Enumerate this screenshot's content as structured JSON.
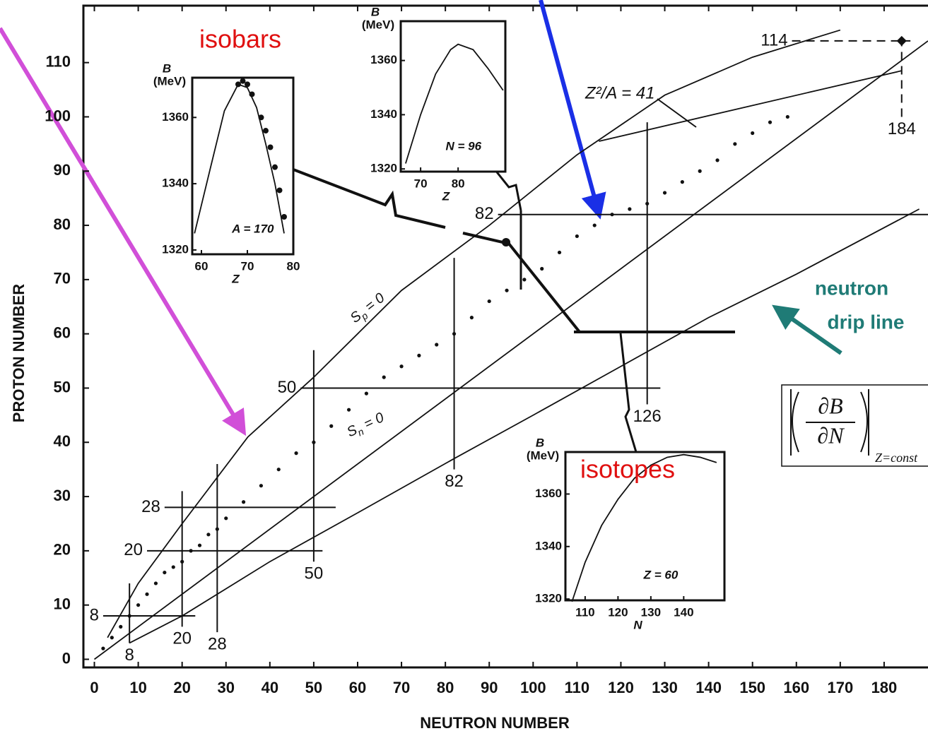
{
  "chart_data": [
    {
      "type": "line",
      "x_label": "NEUTRON NUMBER",
      "y_label": "PROTON NUMBER",
      "xlim": [
        -2.5,
        190
      ],
      "ylim": [
        -1.5,
        120.5
      ],
      "xticks": [
        0,
        10,
        20,
        30,
        40,
        50,
        60,
        70,
        80,
        90,
        100,
        110,
        120,
        130,
        140,
        150,
        160,
        170,
        180
      ],
      "yticks": [
        0,
        10,
        20,
        30,
        40,
        50,
        60,
        70,
        80,
        90,
        100,
        110
      ],
      "series": [
        {
          "x": [
            3,
            10,
            20,
            35,
            50,
            70,
            90,
            110,
            130,
            150,
            170
          ],
          "values": [
            4,
            14,
            25,
            41,
            52,
            68,
            80,
            93,
            104,
            111,
            116
          ],
          "label": "S",
          "sub": "p",
          "rest": " = 0"
        },
        {
          "x": [
            8,
            20,
            40,
            60,
            82,
            100,
            120,
            140,
            160,
            188
          ],
          "values": [
            3,
            8,
            18,
            27,
            37,
            45,
            54,
            63,
            71,
            83
          ],
          "label": "S",
          "sub": "n",
          "rest": " = 0"
        },
        {
          "x": [
            0,
            190
          ],
          "values": [
            0,
            114
          ]
        },
        {
          "x": [
            115,
            184
          ],
          "values": [
            95.5,
            108.5
          ],
          "label": "Z²/A = 41"
        }
      ],
      "scatter": {
        "x": [
          2,
          4,
          6,
          8,
          10,
          12,
          14,
          16,
          18,
          20,
          22,
          24,
          26,
          28,
          30,
          34,
          38,
          42,
          46,
          50,
          54,
          58,
          62,
          66,
          70,
          74,
          78,
          82,
          86,
          90,
          94,
          98,
          102,
          106,
          110,
          114,
          118,
          122,
          126,
          130,
          134,
          138,
          142,
          146,
          150,
          154,
          158
        ],
        "values": [
          2,
          4,
          6,
          8,
          10,
          12,
          14,
          16,
          17,
          18,
          20,
          21,
          23,
          24,
          26,
          29,
          32,
          35,
          38,
          40,
          43,
          46,
          49,
          52,
          54,
          56,
          58,
          60,
          63,
          66,
          68,
          70,
          72,
          75,
          78,
          80,
          82,
          83,
          84,
          86,
          88,
          90,
          92,
          95,
          97,
          99,
          100
        ]
      },
      "magic_z": [
        {
          "z": 8,
          "n": [
            2,
            23
          ]
        },
        {
          "z": 20,
          "n": [
            12,
            52
          ]
        },
        {
          "z": 28,
          "n": [
            16,
            55
          ]
        },
        {
          "z": 50,
          "n": [
            47,
            129
          ]
        },
        {
          "z": 82,
          "n": [
            92,
            190
          ]
        },
        {
          "z": 114,
          "n": [
            159,
            186
          ],
          "dashed": true
        }
      ],
      "magic_n": [
        {
          "n": 8,
          "z": [
            3,
            14
          ]
        },
        {
          "n": 20,
          "z": [
            6,
            31
          ]
        },
        {
          "n": 28,
          "z": [
            5,
            36
          ]
        },
        {
          "n": 50,
          "z": [
            18,
            57
          ]
        },
        {
          "n": 82,
          "z": [
            35,
            74
          ]
        },
        {
          "n": 126,
          "z": [
            47,
            99
          ]
        },
        {
          "n": 184,
          "z": [
            100,
            114
          ],
          "dashed": true
        }
      ],
      "annotations": {
        "isobars": "isobars",
        "isotopes": "isotopes",
        "drip_line": [
          "neutron",
          "drip line"
        ]
      },
      "formula": {
        "numerator": "∂B",
        "denominator": "∂N",
        "subscript": "Z=const"
      }
    },
    {
      "type": "line",
      "y_title": [
        "B",
        "(MeV)"
      ],
      "label": "A = 170",
      "x_label": "Z",
      "xlim": [
        58,
        80
      ],
      "ylim": [
        1318.7,
        1372
      ],
      "xticks": [
        60,
        70,
        80
      ],
      "yticks": [
        1320,
        1340,
        1360
      ],
      "series": [
        {
          "x": [
            58.5,
            62,
            65,
            68,
            70,
            72,
            74,
            76,
            78
          ],
          "values": [
            1325,
            1345,
            1362,
            1370,
            1369,
            1363,
            1352,
            1340,
            1325
          ]
        }
      ],
      "points": {
        "x": [
          68,
          69,
          70,
          71,
          73,
          74,
          75,
          76,
          77,
          78
        ],
        "values": [
          1370,
          1371,
          1370,
          1367,
          1360,
          1356,
          1351,
          1345,
          1338,
          1330
        ]
      }
    },
    {
      "type": "line",
      "y_title": [
        "B",
        "(MeV)"
      ],
      "label": "N = 96",
      "x_label": "Z",
      "xlim": [
        64.7,
        92.6
      ],
      "ylim": [
        1319,
        1374.5
      ],
      "xticks": [
        70,
        80
      ],
      "yticks": [
        1320,
        1340,
        1360
      ],
      "series": [
        {
          "x": [
            66,
            70,
            74,
            78,
            80,
            84,
            88,
            92
          ],
          "values": [
            1322,
            1340,
            1355,
            1364,
            1366,
            1364,
            1357,
            1349
          ]
        }
      ]
    },
    {
      "type": "line",
      "y_title": [
        "B",
        "(MeV)"
      ],
      "label": "Z = 60",
      "x_label": "N",
      "xlim": [
        104,
        152.4
      ],
      "ylim": [
        1319.5,
        1376
      ],
      "xticks": [
        110,
        120,
        130,
        140
      ],
      "yticks": [
        1320,
        1340,
        1360
      ],
      "series": [
        {
          "x": [
            106,
            110,
            115,
            120,
            125,
            130,
            135,
            140,
            145,
            150
          ],
          "values": [
            1319,
            1334,
            1348,
            1358,
            1366,
            1371,
            1374,
            1375,
            1374,
            1372
          ]
        }
      ]
    }
  ]
}
